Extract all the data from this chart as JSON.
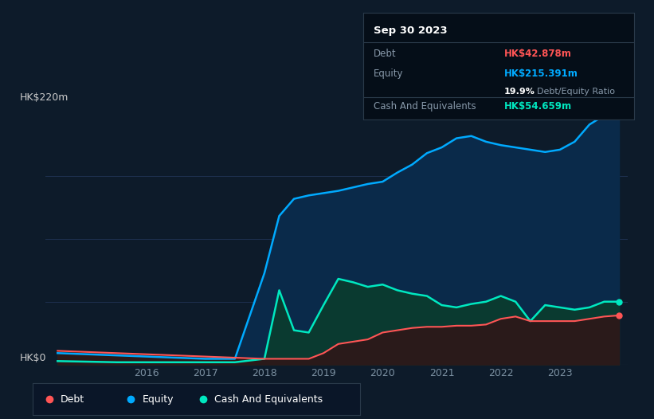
{
  "background_color": "#0d1b2a",
  "plot_bg_color": "#0d1b2a",
  "tooltip": {
    "title": "Sep 30 2023",
    "debt_label": "Debt",
    "debt_value": "HK$42.878m",
    "equity_label": "Equity",
    "equity_value": "HK$215.391m",
    "ratio": "19.9%",
    "ratio_label": "Debt/Equity Ratio",
    "cash_label": "Cash And Equivalents",
    "cash_value": "HK$54.659m"
  },
  "ylabel": "HK$220m",
  "y0label": "HK$0",
  "ylabel_color": "#cccccc",
  "ylim": [
    0,
    220
  ],
  "x_ticks": [
    2016,
    2017,
    2018,
    2019,
    2020,
    2021,
    2022,
    2023
  ],
  "years": [
    2014.5,
    2015.0,
    2015.5,
    2016.0,
    2016.5,
    2017.0,
    2017.5,
    2018.0,
    2018.25,
    2018.5,
    2018.75,
    2019.0,
    2019.25,
    2019.5,
    2019.75,
    2020.0,
    2020.25,
    2020.5,
    2020.75,
    2021.0,
    2021.25,
    2021.5,
    2021.75,
    2022.0,
    2022.25,
    2022.5,
    2022.75,
    2023.0,
    2023.25,
    2023.5,
    2023.75,
    2024.0
  ],
  "equity": [
    10,
    9,
    8,
    7,
    6,
    5,
    5,
    80,
    130,
    145,
    148,
    150,
    152,
    155,
    158,
    160,
    168,
    175,
    185,
    190,
    198,
    200,
    195,
    192,
    190,
    188,
    186,
    188,
    195,
    210,
    218,
    218
  ],
  "cash": [
    3,
    2.5,
    2,
    2,
    2,
    2,
    2,
    5,
    65,
    30,
    28,
    52,
    75,
    72,
    68,
    70,
    65,
    62,
    60,
    52,
    50,
    53,
    55,
    60,
    55,
    38,
    52,
    50,
    48,
    50,
    55,
    55
  ],
  "debt": [
    12,
    11,
    10,
    9,
    8,
    7,
    6,
    5,
    5,
    5,
    5,
    10,
    18,
    20,
    22,
    28,
    30,
    32,
    33,
    33,
    34,
    34,
    35,
    40,
    42,
    38,
    38,
    38,
    38,
    40,
    42,
    43
  ],
  "equity_color": "#00aaff",
  "equity_fill": "#0a2a4a",
  "cash_color": "#00e8c0",
  "cash_fill": "#0a3a30",
  "debt_color": "#ff5555",
  "debt_fill": "#2a1a1a",
  "grid_color": "#1e3050",
  "legend_bg": "#0a1628",
  "legend_border": "#2a3a4a",
  "tick_color": "#7a8fa0",
  "tooltip_bg": "#050e18",
  "tooltip_border": "#2a3a4a",
  "dot_equity_color": "#00aaff",
  "dot_cash_color": "#00e8c0",
  "dot_debt_color": "#ff5555"
}
